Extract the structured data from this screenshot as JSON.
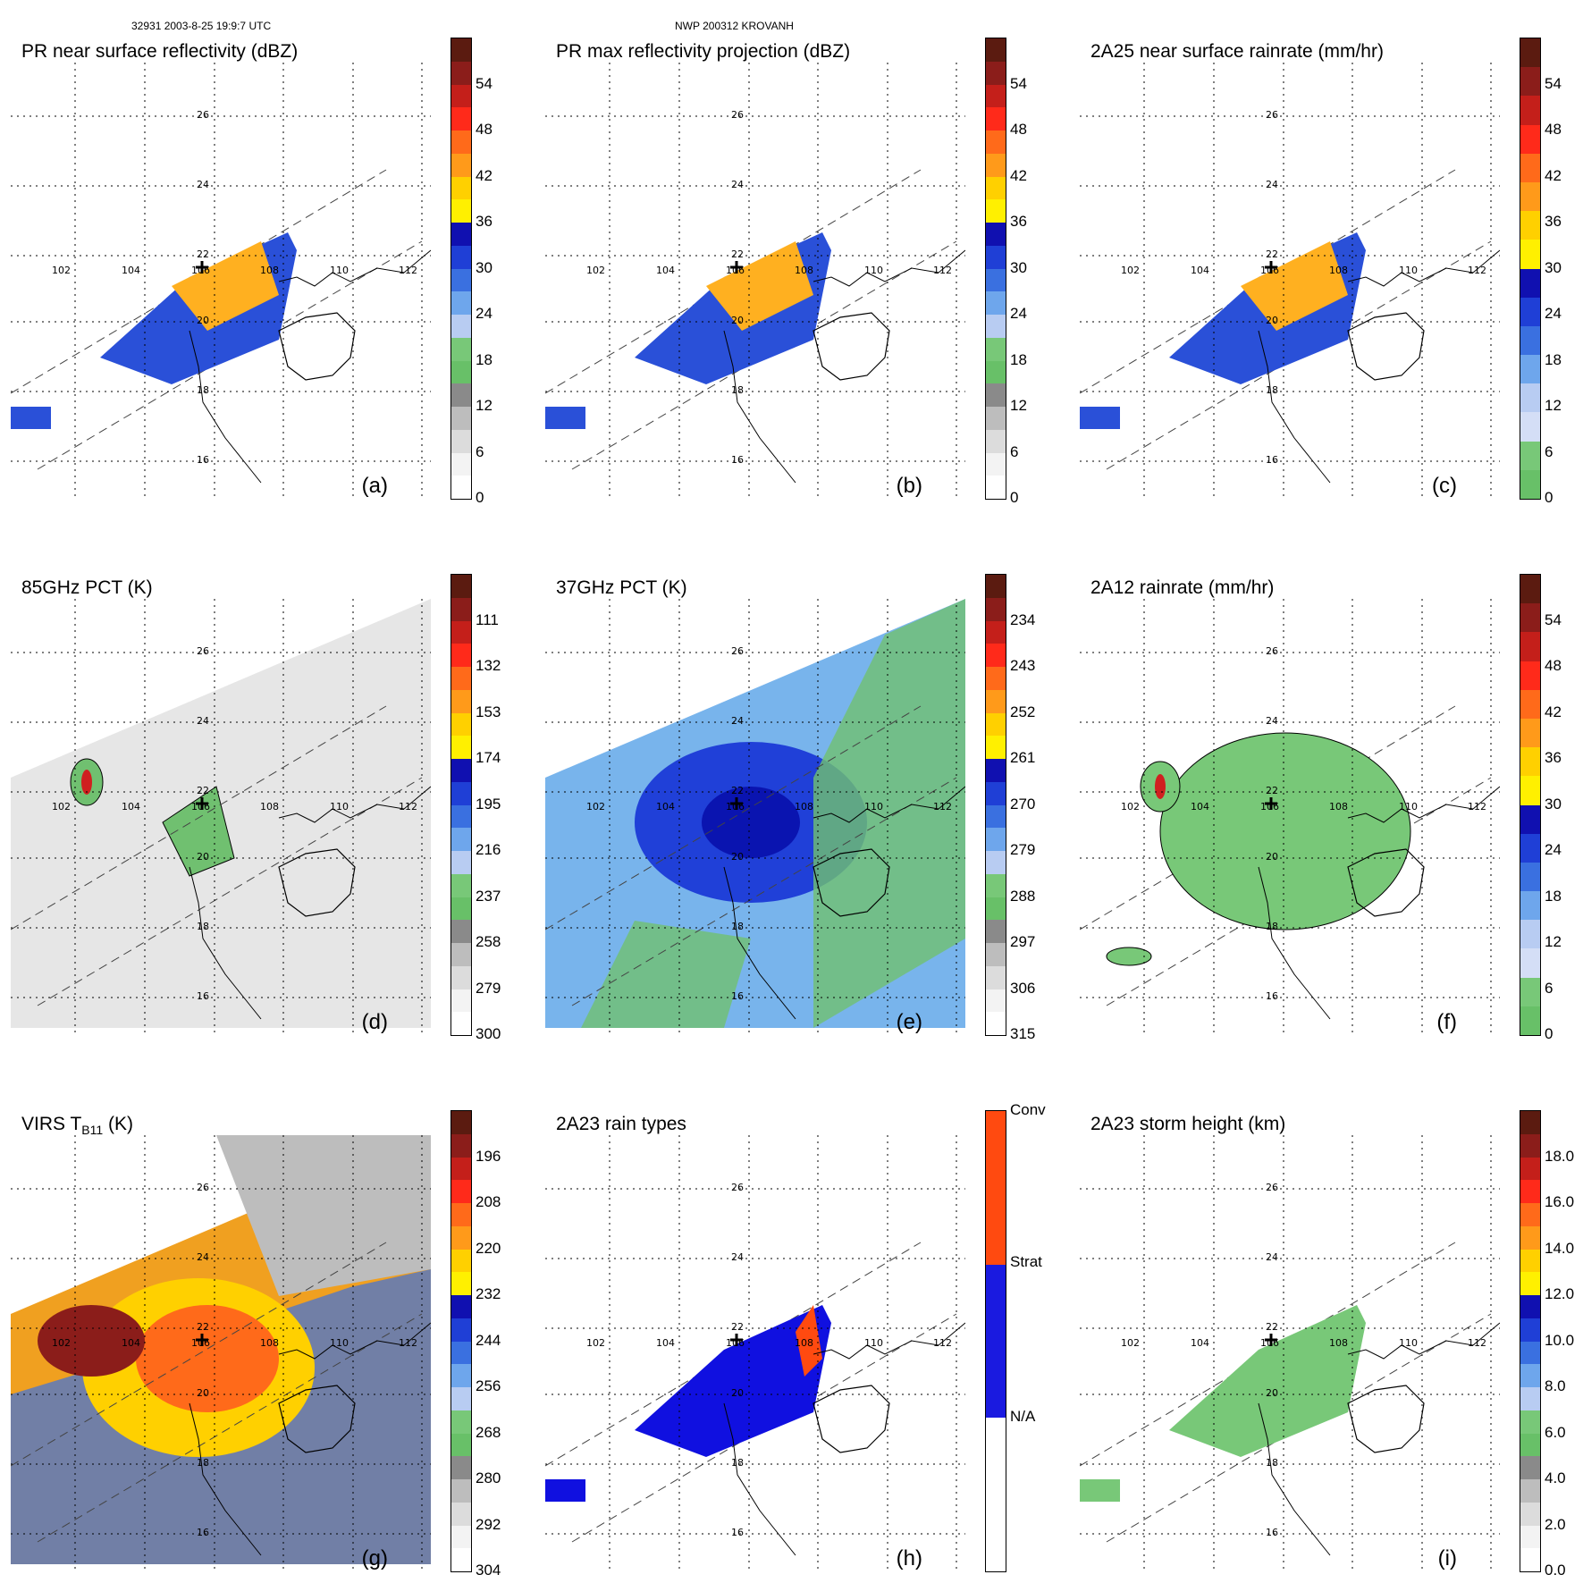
{
  "header": {
    "left": "32931 2003-8-25 19:9:7 UTC",
    "center": "NWP 200312 KROVANH"
  },
  "map_labels": {
    "lat": [
      "26",
      "24",
      "22",
      "20",
      "18",
      "16"
    ],
    "lon": [
      "102",
      "104",
      "106",
      "108",
      "110",
      "112"
    ]
  },
  "panels": [
    {
      "id": "a",
      "title": "PR near surface reflectivity (dBZ)",
      "label": "(a)",
      "ticks": [
        "54",
        "48",
        "42",
        "36",
        "30",
        "24",
        "18",
        "12",
        "6",
        "0"
      ],
      "style": "swath",
      "scheme": "refl"
    },
    {
      "id": "b",
      "title": "PR max reflectivity projection (dBZ)",
      "label": "(b)",
      "ticks": [
        "54",
        "48",
        "42",
        "36",
        "30",
        "24",
        "18",
        "12",
        "6",
        "0"
      ],
      "style": "swath",
      "scheme": "refl"
    },
    {
      "id": "c",
      "title": "2A25 near surface rainrate (mm/hr)",
      "label": "(c)",
      "ticks": [
        "54",
        "48",
        "42",
        "36",
        "30",
        "24",
        "18",
        "12",
        "6",
        "0"
      ],
      "style": "swath",
      "scheme": "rain"
    },
    {
      "id": "d",
      "title": "85GHz PCT (K)",
      "label": "(d)",
      "ticks": [
        "111",
        "132",
        "153",
        "174",
        "195",
        "216",
        "237",
        "258",
        "279",
        "300"
      ],
      "style": "wide-gray",
      "scheme": "pct"
    },
    {
      "id": "e",
      "title": "37GHz PCT (K)",
      "label": "(e)",
      "ticks": [
        "234",
        "243",
        "252",
        "261",
        "270",
        "279",
        "288",
        "297",
        "306",
        "315"
      ],
      "style": "wide-blue",
      "scheme": "pct"
    },
    {
      "id": "f",
      "title": "2A12 rainrate (mm/hr)",
      "label": "(f)",
      "ticks": [
        "54",
        "48",
        "42",
        "36",
        "30",
        "24",
        "18",
        "12",
        "6",
        "0"
      ],
      "style": "blob",
      "scheme": "rain"
    },
    {
      "id": "g",
      "title_main": "VIRS T",
      "title_sub": "B11",
      "title_tail": " (K)",
      "label": "(g)",
      "ticks": [
        "196",
        "208",
        "220",
        "232",
        "244",
        "256",
        "268",
        "280",
        "292",
        "304"
      ],
      "style": "wide-ir",
      "scheme": "pct"
    },
    {
      "id": "h",
      "title": "2A23 rain types",
      "label": "(h)",
      "ticks_cat": [
        "Conv",
        "Strat",
        "N/A"
      ],
      "style": "swath-type",
      "scheme": "type"
    },
    {
      "id": "i",
      "title": "2A23 storm height (km)",
      "label": "(i)",
      "ticks": [
        "18.0",
        "16.0",
        "14.0",
        "12.0",
        "10.0",
        "8.0",
        "6.0",
        "4.0",
        "2.0",
        "0.0"
      ],
      "style": "swath-height",
      "scheme": "height"
    }
  ],
  "colors": {
    "refl": [
      "#5b1b10",
      "#8b1d1a",
      "#c41f1a",
      "#ff2a1a",
      "#ff6a1a",
      "#ff9a1a",
      "#ffd000",
      "#fff000",
      "#1010b0",
      "#1f3fd6",
      "#3a70e0",
      "#6ea6ec",
      "#b8ccf2",
      "#78c878",
      "#68c068",
      "#8a8a8a",
      "#bdbdbd",
      "#dcdcdc",
      "#f3f3f3",
      "#ffffff"
    ],
    "rain": [
      "#5b1b10",
      "#8b1d1a",
      "#c41f1a",
      "#ff2a1a",
      "#ff6a1a",
      "#ff9a1a",
      "#ffd000",
      "#fff000",
      "#1010b0",
      "#1f3fd6",
      "#3a70e0",
      "#6ea6ec",
      "#b8ccf2",
      "#d4def6",
      "#78c878",
      "#68c068"
    ],
    "type": [
      "#ff4a10",
      "#ff4a10",
      "#1a1ae0",
      "#1a1ae0",
      "#ffffff",
      "#ffffff"
    ],
    "height": [
      "#5b1b10",
      "#8b1d1a",
      "#c41f1a",
      "#ff2a1a",
      "#ff6a1a",
      "#ff9a1a",
      "#ffd000",
      "#fff000",
      "#1010b0",
      "#1f3fd6",
      "#3a70e0",
      "#6ea6ec",
      "#b8ccf2",
      "#78c878",
      "#68c068",
      "#8a8a8a",
      "#bdbdbd",
      "#dcdcdc",
      "#f3f3f3",
      "#ffffff"
    ]
  }
}
